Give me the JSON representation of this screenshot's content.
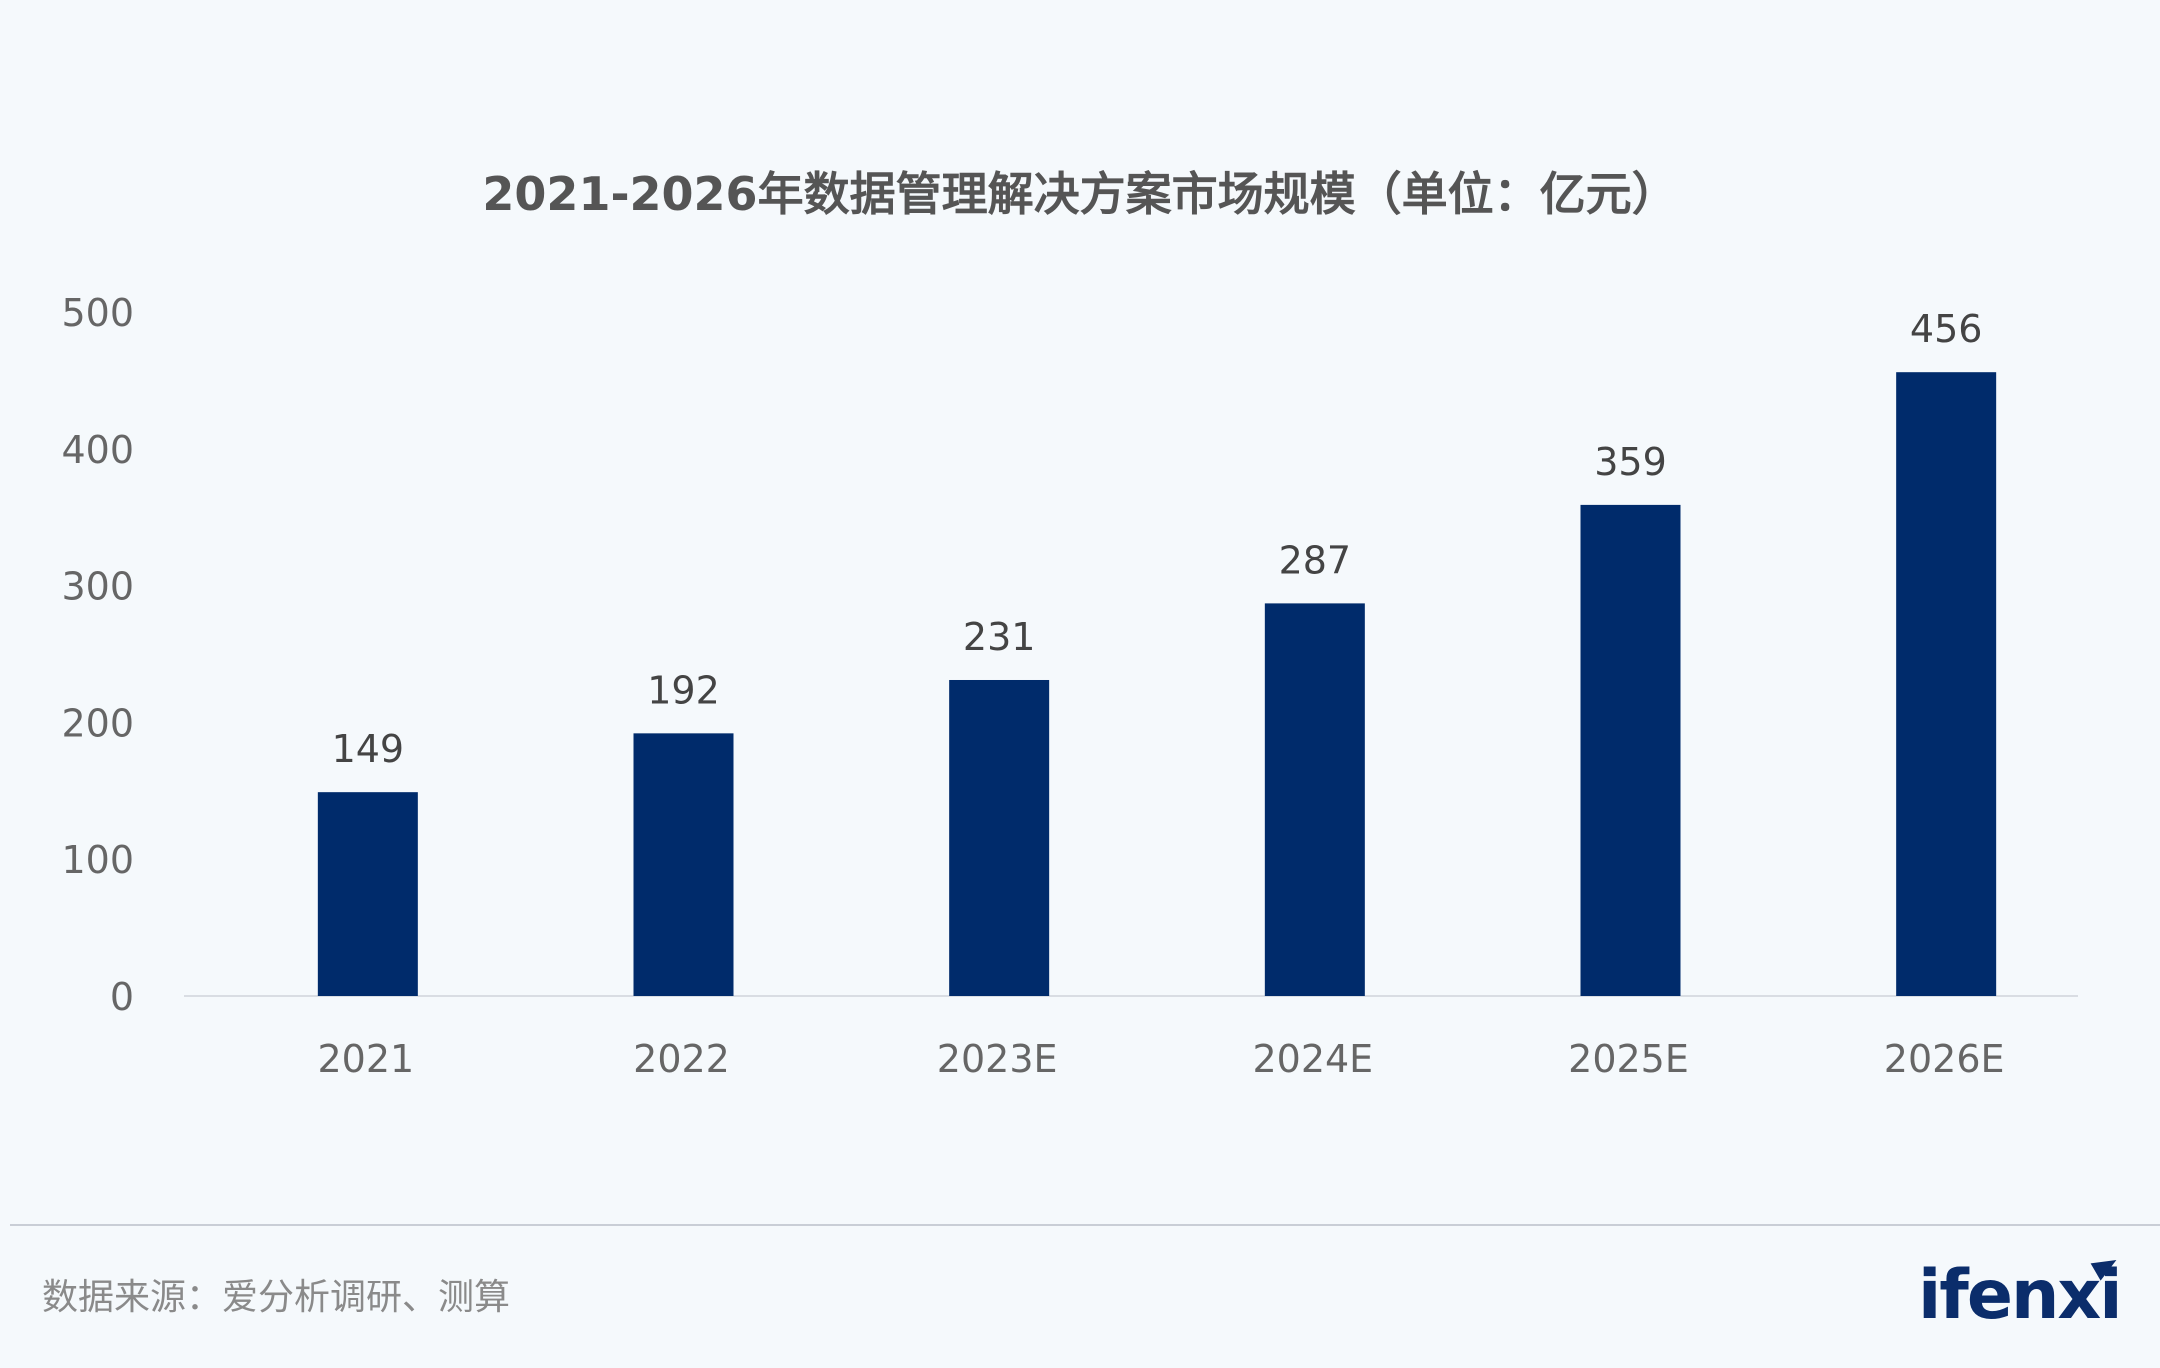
{
  "chart_data": {
    "type": "bar",
    "title": "2021-2026年数据管理解决方案市场规模（单位：亿元）",
    "categories": [
      "2021",
      "2022",
      "2023E",
      "2024E",
      "2025E",
      "2026E"
    ],
    "values": [
      149,
      192,
      231,
      287,
      359,
      456
    ],
    "data_labels": [
      "149",
      "192",
      "231",
      "287",
      "359",
      "456"
    ],
    "yticks": [
      0,
      100,
      200,
      300,
      400,
      500
    ],
    "ytick_labels": [
      "0",
      "100",
      "200",
      "300",
      "400",
      "500"
    ],
    "ylim": [
      0,
      500
    ],
    "xlabel": "",
    "ylabel": "",
    "grid": false,
    "legend": "none",
    "bar_color": "#002b6b"
  },
  "footer": {
    "source": "数据来源：爱分析调研、测算"
  },
  "brand": {
    "logo_text": "ifenxi",
    "logo_color": "#0b2d6b"
  }
}
